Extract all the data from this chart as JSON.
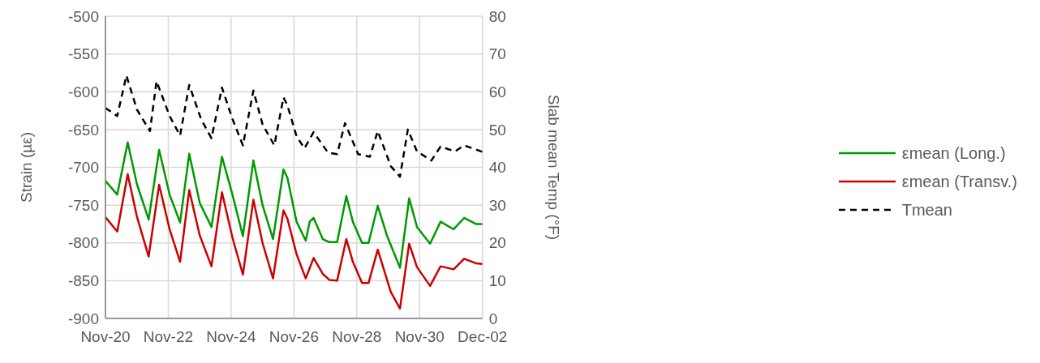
{
  "chart_data": {
    "type": "line",
    "xlabel": null,
    "ylabel": "Strain (µε)",
    "y2label": "Slab mean Temp (°F)",
    "xlim": [
      "--11-20",
      "--12-02"
    ],
    "xticks": [
      {
        "value": "--11-20",
        "label": "Nov-20"
      },
      {
        "value": "--11-22",
        "label": "Nov-22"
      },
      {
        "value": "--11-24",
        "label": "Nov-24"
      },
      {
        "value": "--11-26",
        "label": "Nov-26"
      },
      {
        "value": "--11-28",
        "label": "Nov-28"
      },
      {
        "value": "--11-30",
        "label": "Nov-30"
      },
      {
        "value": "--12-02",
        "label": "Dec-02"
      }
    ],
    "ylim": [
      -900,
      -500
    ],
    "yticks": [
      -900,
      -850,
      -800,
      -750,
      -700,
      -650,
      -600,
      -550,
      -500
    ],
    "y2lim": [
      0,
      80
    ],
    "y2ticks": [
      0,
      10,
      20,
      30,
      40,
      50,
      60,
      70,
      80
    ],
    "grid": true,
    "legend": "right",
    "marker": "none",
    "series": [
      {
        "name": "εmean (Long.)",
        "color": "#009900",
        "line_style": "solid",
        "x": [
          "--11-20T00:00",
          "--11-20T09:00",
          "--11-20T17:00",
          "--11-21T00:00",
          "--11-21T09:00",
          "--11-21T17:00",
          "--11-22T01:00",
          "--11-22T09:00",
          "--11-22T16:00",
          "--11-23T00:00",
          "--11-23T09:00",
          "--11-23T17:00",
          "--11-24T01:00",
          "--11-24T09:00",
          "--11-24T17:00",
          "--11-25T00:00",
          "--11-25T08:00",
          "--11-25T16:00",
          "--11-25T19:00",
          "--11-26T02:00",
          "--11-26T09:00",
          "--11-26T12:00",
          "--11-26T15:00",
          "--11-26T22:00",
          "--11-27T03:00",
          "--11-27T09:00",
          "--11-27T16:00",
          "--11-27T21:00",
          "--11-28T04:00",
          "--11-28T09:00",
          "--11-28T16:00",
          "--11-28T23:00",
          "--11-29T09:00",
          "--11-29T16:00",
          "--11-29T22:00",
          "--11-30T08:00",
          "--11-30T16:00",
          "--12-01T02:00",
          "--12-01T10:00",
          "--12-01T19:00",
          "--12-02T00:00"
        ],
        "values": [
          -718,
          -736,
          -667,
          -722,
          -769,
          -677,
          -736,
          -773,
          -682,
          -747,
          -779,
          -686,
          -736,
          -791,
          -691,
          -750,
          -795,
          -703,
          -714,
          -772,
          -797,
          -772,
          -767,
          -795,
          -799,
          -799,
          -738,
          -772,
          -800,
          -800,
          -751,
          -790,
          -833,
          -741,
          -779,
          -801,
          -772,
          -782,
          -767,
          -775,
          -775
        ]
      },
      {
        "name": "εmean (Transv.)",
        "color": "#cc0000",
        "line_style": "solid",
        "x": [
          "--11-20T00:00",
          "--11-20T09:00",
          "--11-20T17:00",
          "--11-21T00:00",
          "--11-21T09:00",
          "--11-21T17:00",
          "--11-22T01:00",
          "--11-22T09:00",
          "--11-22T16:00",
          "--11-23T00:00",
          "--11-23T09:00",
          "--11-23T17:00",
          "--11-24T01:00",
          "--11-24T09:00",
          "--11-24T17:00",
          "--11-25T00:00",
          "--11-25T08:00",
          "--11-25T16:00",
          "--11-25T19:00",
          "--11-26T02:00",
          "--11-26T09:00",
          "--11-26T15:00",
          "--11-26T22:00",
          "--11-27T03:00",
          "--11-27T09:00",
          "--11-27T16:00",
          "--11-27T21:00",
          "--11-28T04:00",
          "--11-28T09:00",
          "--11-28T16:00",
          "--11-29T02:00",
          "--11-29T09:00",
          "--11-29T16:00",
          "--11-29T22:00",
          "--11-30T08:00",
          "--11-30T16:00",
          "--12-01T02:00",
          "--12-01T10:00",
          "--12-01T19:00",
          "--12-02T00:00"
        ],
        "values": [
          -766,
          -785,
          -709,
          -765,
          -818,
          -723,
          -782,
          -825,
          -730,
          -790,
          -831,
          -733,
          -793,
          -842,
          -743,
          -800,
          -847,
          -757,
          -768,
          -815,
          -847,
          -820,
          -841,
          -849,
          -850,
          -795,
          -825,
          -853,
          -853,
          -809,
          -865,
          -887,
          -801,
          -832,
          -857,
          -831,
          -835,
          -821,
          -827,
          -828
        ]
      },
      {
        "name": "Tmean",
        "color": "#000000",
        "line_style": "dashed",
        "axis": "y2",
        "x": [
          "--11-20T00:00",
          "--11-20T09:00",
          "--11-20T16:00",
          "--11-21T00:00",
          "--11-21T10:00",
          "--11-21T15:00",
          "--11-22T01:00",
          "--11-22T09:00",
          "--11-22T16:00",
          "--11-23T01:00",
          "--11-23T09:00",
          "--11-23T17:00",
          "--11-24T01:00",
          "--11-24T09:00",
          "--11-24T17:00",
          "--11-25T00:00",
          "--11-25T09:00",
          "--11-25T16:00",
          "--11-25T19:00",
          "--11-26T02:00",
          "--11-26T08:00",
          "--11-26T15:00",
          "--11-27T02:00",
          "--11-27T09:00",
          "--11-27T15:00",
          "--11-28T01:00",
          "--11-28T10:00",
          "--11-28T16:00",
          "--11-29T02:00",
          "--11-29T09:00",
          "--11-29T15:00",
          "--11-29T22:00",
          "--11-30T09:00",
          "--11-30T16:00",
          "--12-01T03:00",
          "--12-01T10:00",
          "--12-02T00:00"
        ],
        "values": [
          55.7,
          53.6,
          64.3,
          55.3,
          49.6,
          62.8,
          53.6,
          48.4,
          61.8,
          52.8,
          47.7,
          61.1,
          52.8,
          45.8,
          60.3,
          51.4,
          45.8,
          58.5,
          56.4,
          48.2,
          45.0,
          49.3,
          43.9,
          43.5,
          51.7,
          43.5,
          42.8,
          49.6,
          40.3,
          37.5,
          50.0,
          44.2,
          41.8,
          45.5,
          44.2,
          45.8,
          44.1
        ]
      }
    ]
  }
}
